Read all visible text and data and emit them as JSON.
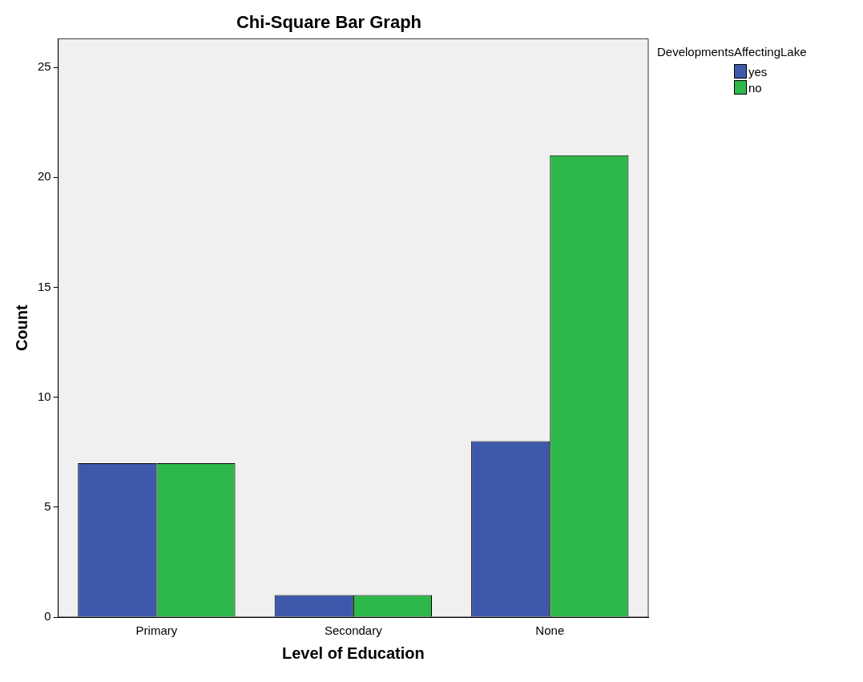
{
  "chart_data": {
    "type": "bar",
    "title": "Chi-Square Bar Graph",
    "xlabel": "Level of Education",
    "ylabel": "Count",
    "legend_title": "DevelopmentsAffectingLake",
    "categories": [
      "Primary",
      "Secondary",
      "None"
    ],
    "series": [
      {
        "name": "yes",
        "color": "#3e58ac",
        "values": [
          7,
          1,
          8
        ]
      },
      {
        "name": "no",
        "color": "#2fb84a",
        "values": [
          7,
          1,
          21
        ]
      }
    ],
    "ylim": [
      0,
      26.3
    ],
    "yticks": [
      0,
      5,
      10,
      15,
      20,
      25
    ],
    "grid": false,
    "legend": "top right"
  }
}
